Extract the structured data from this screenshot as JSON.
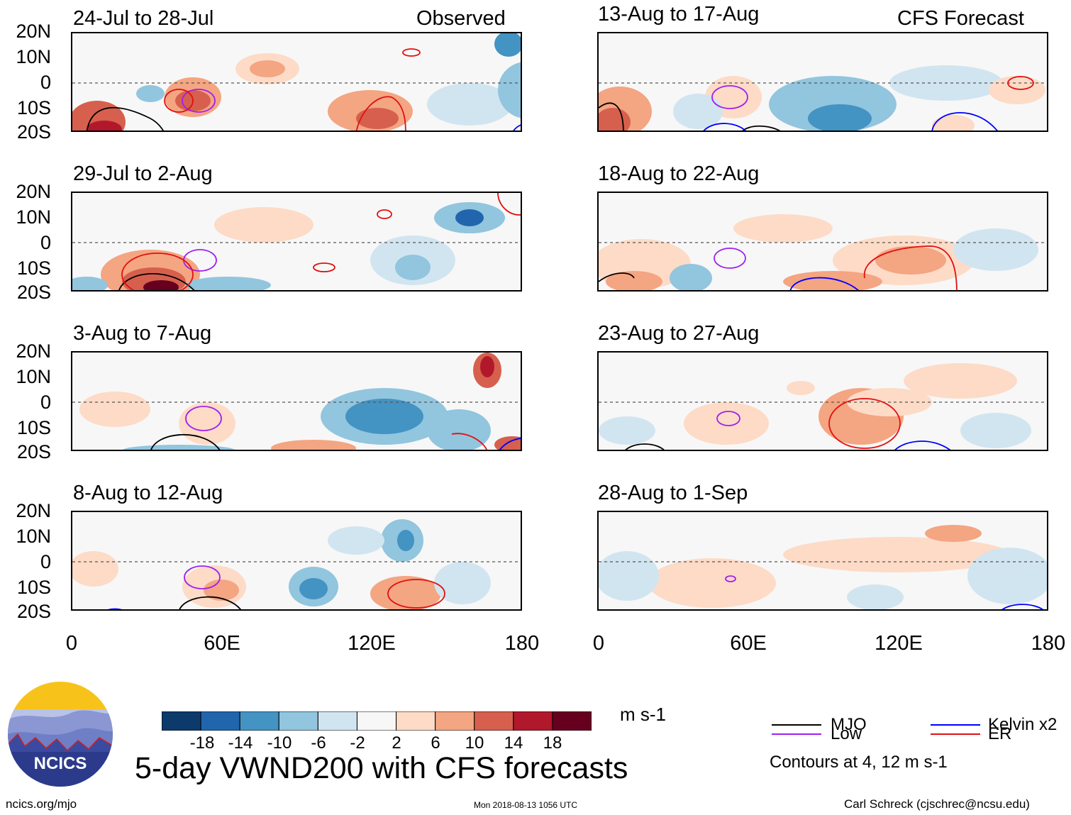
{
  "figure": {
    "title": "5-day VWND200 with CFS forecasts",
    "footer_left": "ncics.org/mjo",
    "footer_center": "Mon 2018-08-13 1056 UTC",
    "footer_right": "Carl Schreck (cjschrec@ncsu.edu)",
    "logo_text": "NCICS"
  },
  "columns": {
    "observed_label": "Observed",
    "forecast_label": "CFS Forecast"
  },
  "panels": [
    {
      "period": "24-Jul to 28-Jul",
      "kind": "observed"
    },
    {
      "period": "29-Jul to 2-Aug",
      "kind": "observed"
    },
    {
      "period": "3-Aug to 7-Aug",
      "kind": "observed"
    },
    {
      "period": "8-Aug to 12-Aug",
      "kind": "observed"
    },
    {
      "period": "13-Aug to 17-Aug",
      "kind": "forecast"
    },
    {
      "period": "18-Aug to 22-Aug",
      "kind": "forecast"
    },
    {
      "period": "23-Aug to 27-Aug",
      "kind": "forecast"
    },
    {
      "period": "28-Aug to 1-Sep",
      "kind": "forecast"
    }
  ],
  "axes": {
    "lat_ticks": [
      "20N",
      "10N",
      "0",
      "10S",
      "20S"
    ],
    "lon_ticks": [
      "0",
      "60E",
      "120E",
      "180"
    ],
    "lat_range": [
      -20,
      20
    ],
    "lon_range": [
      0,
      180
    ]
  },
  "colorbar": {
    "units": "m s-1",
    "tick_labels": [
      "-18",
      "-14",
      "-10",
      "-6",
      "-2",
      "2",
      "6",
      "10",
      "14",
      "18"
    ],
    "colors": [
      "#0b3a6b",
      "#2166ac",
      "#4393c3",
      "#92c5de",
      "#d1e5f0",
      "#f7f7f7",
      "#fddbc7",
      "#f4a582",
      "#d6604d",
      "#b2182b",
      "#67001f"
    ]
  },
  "legend": {
    "items": [
      {
        "label": "MJO",
        "color": "#000000"
      },
      {
        "label": "Low",
        "color": "#a020f0"
      },
      {
        "label": "Kelvin x2",
        "color": "#0000ff"
      },
      {
        "label": "ER",
        "color": "#e01010"
      }
    ],
    "note": "Contours at 4, 12 m s-1"
  }
}
